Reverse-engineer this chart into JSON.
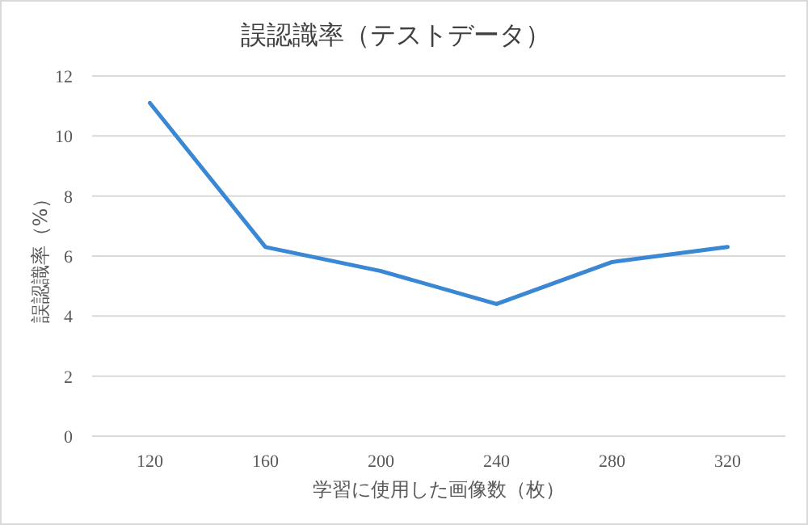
{
  "chart_data": {
    "type": "line",
    "title": "誤認識率（テストデータ）",
    "xlabel": "学習に使用した画像数（枚）",
    "ylabel": "誤認識率（%）",
    "categories": [
      "120",
      "160",
      "200",
      "240",
      "280",
      "320"
    ],
    "series": [
      {
        "color": "#3a87d3",
        "values": [
          11.1,
          6.3,
          5.5,
          4.4,
          5.8,
          6.3
        ]
      }
    ],
    "ylim": [
      0,
      12
    ],
    "yticks": [
      0,
      2,
      4,
      6,
      8,
      10,
      12
    ],
    "grid": "y",
    "marker": "none",
    "line_style": "solid"
  }
}
